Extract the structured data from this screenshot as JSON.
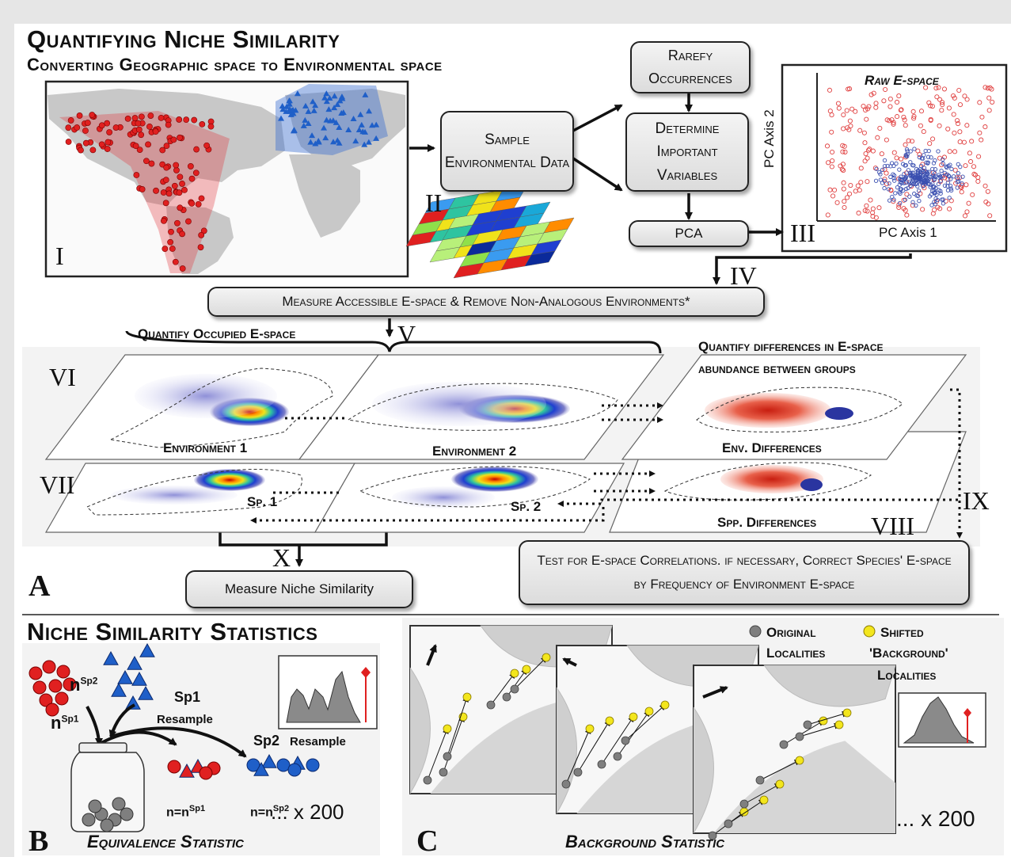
{
  "panel_a": {
    "title": "Quantifying Niche Similarity",
    "subtitle": "Converting Geographic space to Environmental space",
    "letter": "A",
    "boxes": {
      "rarefy": "Rarefy Occurrences",
      "sample": "Sample Environmental Data",
      "determine": "Determine Important Variables",
      "pca": "PCA",
      "measure_accessible": "Measure Accessible E-space & Remove Non-Analogous Environments*",
      "measure_niche": "Measure Niche Similarity",
      "test_corr": "Test for E-space Correlations. if necessary, Correct Species' E-space by Frequency of Environment E-space"
    },
    "roman": {
      "I": "I",
      "II": "II",
      "III": "III",
      "IV": "IV",
      "V": "V",
      "VI": "VI",
      "VII": "VII",
      "VIII": "VIII",
      "IX": "IX",
      "X": "X"
    },
    "espace_plot": {
      "title": "Raw E-space",
      "xlabel": "PC Axis 1",
      "ylabel": "PC Axis 2"
    },
    "occupied_label": "Quantify Occupied E-space",
    "differences_label_1": "Quantify differences in E-space",
    "differences_label_2": "abundance between groups",
    "planes": {
      "env1": "Environment 1",
      "env2": "Environment 2",
      "env_diff": "Env. Differences",
      "sp1": "Sp. 1",
      "sp2": "Sp. 2",
      "spp_diff": "Spp. Differences"
    }
  },
  "panel_b": {
    "title": "Niche Similarity Statistics",
    "letter": "B",
    "caption": "Equivalence Statistic",
    "n_sp2": "n",
    "n_sp2_sup": "Sp2",
    "n_sp1": "n",
    "n_sp1_sup": "Sp1",
    "sp1_resample_1": "Sp1",
    "sp1_resample_2": "Resample",
    "sp2_resample_1": "Sp2",
    "sp2_resample_2": "Resample",
    "eq1": "n=n",
    "eq1_sup": "Sp1",
    "eq2": "n=n",
    "eq2_sup": "Sp2",
    "times": "... x 200"
  },
  "panel_c": {
    "letter": "C",
    "caption": "Background Statistic",
    "legend_original_1": "Original",
    "legend_original_2": "Localities",
    "legend_shifted_1": "Shifted",
    "legend_shifted_2": "'Background'",
    "legend_shifted_3": "Localities",
    "times": "... x 200",
    "colors": {
      "original": "#7f7f7f",
      "shifted": "#f3e61d"
    }
  },
  "colors": {
    "sp1": "#e02020",
    "sp2": "#1f5fc8",
    "border": "#222222"
  }
}
